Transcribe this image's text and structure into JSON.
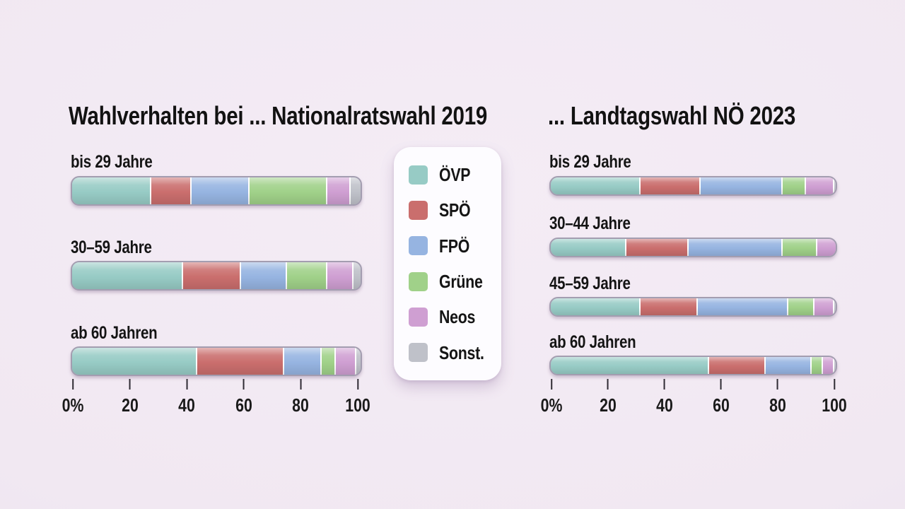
{
  "page": {
    "background_color": "#f1e9f2",
    "text_color": "#141414"
  },
  "legend": {
    "position": "center-between-charts",
    "items": [
      {
        "label": "ÖVP",
        "color": "#97cbc5"
      },
      {
        "label": "SPÖ",
        "color": "#ca6e6d"
      },
      {
        "label": "FPÖ",
        "color": "#96b4e1"
      },
      {
        "label": "Grüne",
        "color": "#a0d189"
      },
      {
        "label": "Neos",
        "color": "#cf9fd2"
      },
      {
        "label": "Sonst.",
        "color": "#bfc1c9"
      }
    ]
  },
  "chart_data": [
    {
      "type": "bar",
      "variant": "horizontal-stacked-100",
      "title": "Wahlverhalten bei ... Nationalratswahl 2019",
      "categories": [
        "bis 29 Jahre",
        "30–59 Jahre",
        "ab 60 Jahren"
      ],
      "series": [
        {
          "name": "ÖVP",
          "values": [
            27,
            38,
            43
          ]
        },
        {
          "name": "SPÖ",
          "values": [
            14,
            20,
            30
          ]
        },
        {
          "name": "FPÖ",
          "values": [
            20,
            16,
            13
          ]
        },
        {
          "name": "Grüne",
          "values": [
            27,
            14,
            5
          ]
        },
        {
          "name": "Neos",
          "values": [
            8,
            9,
            7
          ]
        },
        {
          "name": "Sonst.",
          "values": [
            4,
            3,
            2
          ]
        }
      ],
      "xlim": [
        0,
        100
      ],
      "tick_labels": [
        "0%",
        "20",
        "40",
        "60",
        "80",
        "100"
      ],
      "unit": "percent",
      "grid": false
    },
    {
      "type": "bar",
      "variant": "horizontal-stacked-100",
      "title": "... Landtagswahl NÖ 2023",
      "categories": [
        "bis 29 Jahre",
        "30–44 Jahre",
        "45–59 Jahre",
        "ab 60 Jahren"
      ],
      "series": [
        {
          "name": "ÖVP",
          "values": [
            31,
            26,
            31,
            55
          ]
        },
        {
          "name": "SPÖ",
          "values": [
            21,
            22,
            20,
            20
          ]
        },
        {
          "name": "FPÖ",
          "values": [
            29,
            33,
            32,
            16
          ]
        },
        {
          "name": "Grüne",
          "values": [
            8,
            12,
            9,
            4
          ]
        },
        {
          "name": "Neos",
          "values": [
            10,
            7,
            7,
            4
          ]
        },
        {
          "name": "Sonst.",
          "values": [
            1,
            0,
            1,
            1
          ]
        }
      ],
      "xlim": [
        0,
        100
      ],
      "tick_labels": [
        "0%",
        "20",
        "40",
        "60",
        "80",
        "100"
      ],
      "unit": "percent",
      "grid": false
    }
  ]
}
